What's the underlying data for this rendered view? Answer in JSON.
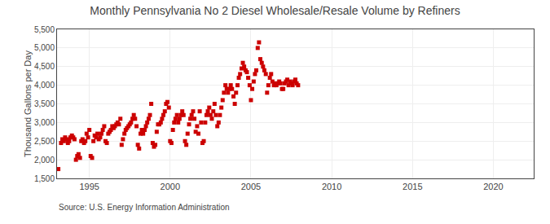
{
  "chart_data": {
    "type": "scatter",
    "title": "Monthly Pennsylvania No 2 Diesel Wholesale/Resale Volume by Refiners",
    "ylabel": "Thousand Gallons per Day",
    "annotations": [
      "Source: U.S. Energy Information Administration"
    ],
    "color": "#cc0000",
    "marker": "square",
    "grid": true,
    "xlim": [
      1993.0,
      2022.5
    ],
    "ylim": [
      1500,
      5500
    ],
    "xticks": [
      1995,
      2000,
      2005,
      2010,
      2015,
      2020
    ],
    "yticks": [
      {
        "value": 1500,
        "label": "1,500"
      },
      {
        "value": 2000,
        "label": "2,000"
      },
      {
        "value": 2500,
        "label": "2,500"
      },
      {
        "value": 3000,
        "label": "3,000"
      },
      {
        "value": 3500,
        "label": "3,500"
      },
      {
        "value": 4000,
        "label": "4,000"
      },
      {
        "value": 4500,
        "label": "4,500"
      },
      {
        "value": 5000,
        "label": "5,000"
      },
      {
        "value": 5500,
        "label": "5,500"
      }
    ],
    "x": [
      1993.08,
      1993.25,
      1993.33,
      1993.42,
      1993.5,
      1993.58,
      1993.67,
      1993.75,
      1993.83,
      1993.92,
      1994.0,
      1994.08,
      1994.17,
      1994.25,
      1994.33,
      1994.42,
      1994.5,
      1994.58,
      1994.67,
      1994.75,
      1994.83,
      1994.92,
      1995.0,
      1995.08,
      1995.17,
      1995.25,
      1995.33,
      1995.42,
      1995.5,
      1995.58,
      1995.67,
      1995.75,
      1995.83,
      1995.92,
      1996.0,
      1996.08,
      1996.17,
      1996.25,
      1996.33,
      1996.42,
      1996.5,
      1996.58,
      1996.67,
      1996.75,
      1996.83,
      1996.92,
      1997.0,
      1997.08,
      1997.17,
      1997.25,
      1997.33,
      1997.42,
      1997.5,
      1997.58,
      1997.67,
      1997.75,
      1997.83,
      1997.92,
      1998.0,
      1998.08,
      1998.17,
      1998.25,
      1998.33,
      1998.42,
      1998.5,
      1998.58,
      1998.67,
      1998.75,
      1998.83,
      1998.92,
      1999.0,
      1999.08,
      1999.17,
      1999.25,
      1999.33,
      1999.42,
      1999.5,
      1999.58,
      1999.67,
      1999.75,
      1999.83,
      1999.92,
      2000.0,
      2000.08,
      2000.17,
      2000.25,
      2000.33,
      2000.42,
      2000.5,
      2000.58,
      2000.67,
      2000.75,
      2000.83,
      2000.92,
      2001.0,
      2001.08,
      2001.17,
      2001.25,
      2001.33,
      2001.42,
      2001.5,
      2001.58,
      2001.67,
      2001.75,
      2001.83,
      2001.92,
      2002.0,
      2002.08,
      2002.17,
      2002.25,
      2002.33,
      2002.42,
      2002.5,
      2002.58,
      2002.67,
      2002.75,
      2002.83,
      2002.92,
      2003.0,
      2003.08,
      2003.17,
      2003.25,
      2003.33,
      2003.42,
      2003.5,
      2003.58,
      2003.67,
      2003.75,
      2003.83,
      2003.92,
      2004.0,
      2004.08,
      2004.17,
      2004.25,
      2004.33,
      2004.42,
      2004.5,
      2004.58,
      2004.67,
      2004.75,
      2004.83,
      2004.92,
      2005.0,
      2005.08,
      2005.17,
      2005.25,
      2005.33,
      2005.42,
      2005.5,
      2005.58,
      2005.67,
      2005.75,
      2005.83,
      2005.92,
      2006.0,
      2006.08,
      2006.17,
      2006.25,
      2006.33,
      2006.42,
      2006.5,
      2006.58,
      2006.67,
      2006.75,
      2006.83,
      2006.92,
      2007.0,
      2007.08,
      2007.17,
      2007.25,
      2007.33,
      2007.42,
      2007.5,
      2007.58,
      2007.67,
      2007.75,
      2007.83,
      2007.92
    ],
    "values": [
      1750,
      2450,
      2550,
      2500,
      2600,
      2550,
      2450,
      2500,
      2600,
      2650,
      2600,
      2550,
      2000,
      2100,
      2150,
      2050,
      2500,
      2550,
      2450,
      2500,
      2700,
      2600,
      2800,
      2100,
      2050,
      2500,
      2650,
      2600,
      2700,
      2550,
      2600,
      2700,
      2800,
      2900,
      2500,
      2450,
      2700,
      2750,
      2800,
      2900,
      2850,
      2900,
      2950,
      3000,
      2950,
      3100,
      2400,
      2550,
      2700,
      2800,
      2850,
      2900,
      2950,
      3000,
      3100,
      3200,
      3100,
      2900,
      2400,
      2300,
      2700,
      2800,
      2700,
      2800,
      2900,
      3000,
      3100,
      3200,
      3500,
      2450,
      2350,
      2400,
      2750,
      2950,
      2950,
      3000,
      3100,
      3200,
      3300,
      3500,
      3550,
      3400,
      2500,
      2450,
      2800,
      3000,
      3100,
      3200,
      3000,
      3100,
      3200,
      3300,
      3200,
      2500,
      2400,
      2700,
      2950,
      3100,
      3200,
      3300,
      3100,
      2750,
      2900,
      2700,
      3300,
      3000,
      2450,
      2500,
      3000,
      3200,
      3300,
      3400,
      3200,
      3100,
      3300,
      3500,
      3200,
      2900,
      3000,
      3200,
      3400,
      3600,
      3800,
      4000,
      3900,
      3800,
      3900,
      4000,
      3900,
      3700,
      3500,
      3800,
      4000,
      4200,
      4300,
      4450,
      4600,
      4500,
      4400,
      4350,
      4200,
      4000,
      3600,
      3900,
      4100,
      4300,
      4400,
      5000,
      5150,
      4700,
      4600,
      4500,
      4400,
      4300,
      3800,
      4000,
      4200,
      4300,
      4100,
      4000,
      4050,
      4000,
      4050,
      4100,
      4050,
      3900,
      3900,
      4050,
      4100,
      4150,
      4000,
      4100,
      4050,
      4000,
      4100,
      4150,
      4050,
      4000
    ]
  }
}
